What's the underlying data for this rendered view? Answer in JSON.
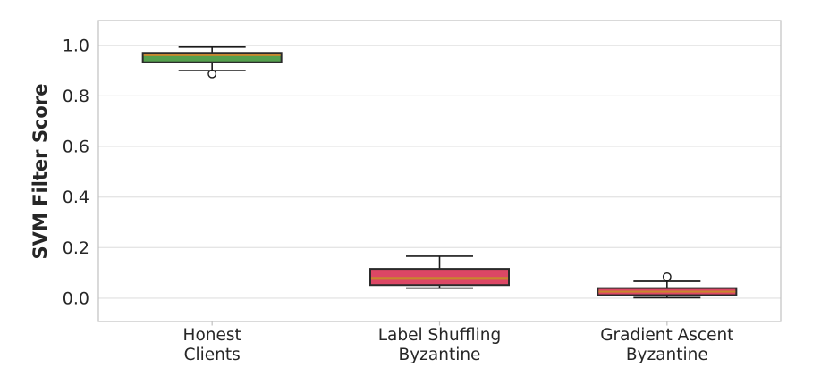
{
  "chart_data": {
    "type": "boxplot",
    "title": "",
    "xlabel": "",
    "ylabel": "SVM Filter Score",
    "ylim": [
      -0.092,
      1.098
    ],
    "yticks": [
      0.0,
      0.2,
      0.4,
      0.6,
      0.8,
      1.0
    ],
    "ytick_labels": [
      "0.0",
      "0.2",
      "0.4",
      "0.6",
      "0.8",
      "1.0"
    ],
    "grid": true,
    "legend": "none",
    "categories": [
      "Honest Clients",
      "Label Shuffling Byzantine",
      "Gradient Ascent Byzantine"
    ],
    "boxes": [
      {
        "name": "honest-clients",
        "label_lines": [
          "Honest",
          "Clients"
        ],
        "fill": "#55a04e",
        "whislo": 0.9,
        "q1": 0.933,
        "med": 0.961,
        "q3": 0.97,
        "whishi": 0.993,
        "fliers": [
          0.887
        ]
      },
      {
        "name": "label-shuffling-byzantine",
        "label_lines": [
          "Label Shuffling",
          "Byzantine"
        ],
        "fill": "#dc4765",
        "whislo": 0.04,
        "q1": 0.052,
        "med": 0.08,
        "q3": 0.116,
        "whishi": 0.166,
        "fliers": []
      },
      {
        "name": "gradient-ascent-byzantine",
        "label_lines": [
          "Gradient Ascent",
          "Byzantine"
        ],
        "fill": "#dc4765",
        "whislo": 0.002,
        "q1": 0.012,
        "med": 0.026,
        "q3": 0.04,
        "whishi": 0.067,
        "fliers": [
          0.085
        ]
      }
    ],
    "colors": {
      "green_box": "#55a04e",
      "red_box": "#dc4765",
      "median": "#c8872e",
      "box_edge": "#2b2b2b",
      "whisker": "#1a1a1a",
      "grid": "#e5e5e5",
      "spine": "#c0c0c0",
      "text": "#262626"
    }
  }
}
